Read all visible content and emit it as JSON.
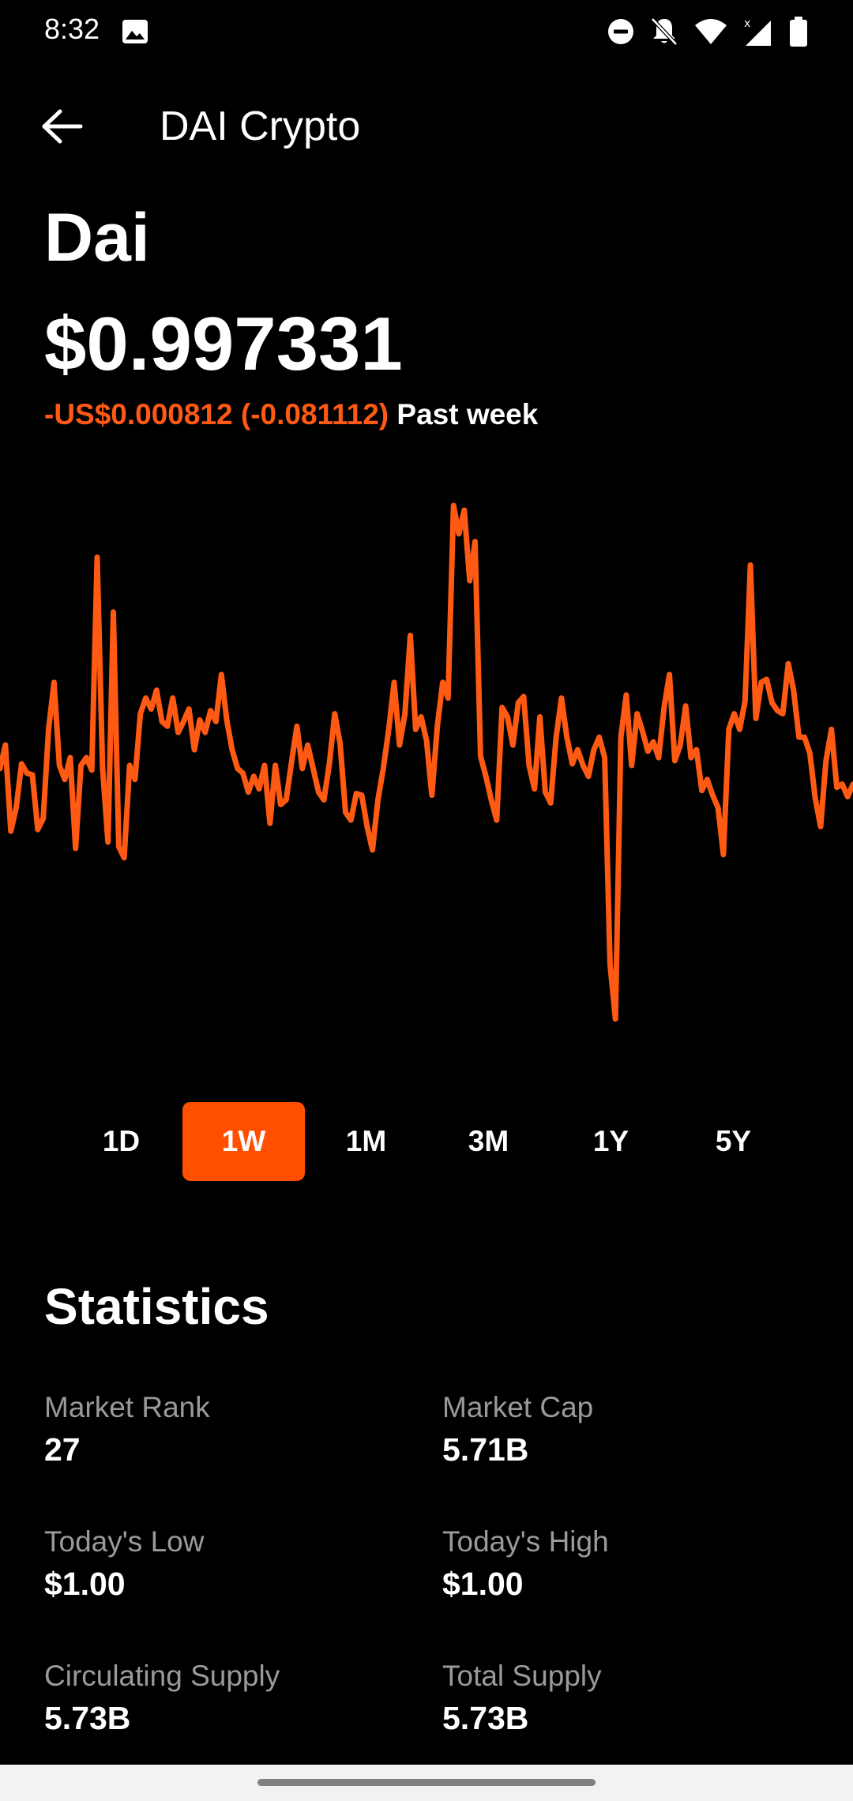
{
  "status_bar": {
    "time": "8:32",
    "icons": [
      "gallery-icon",
      "do-not-disturb-icon",
      "notifications-off-icon",
      "wifi-icon",
      "cellular-signal-icon",
      "battery-icon"
    ]
  },
  "app_bar": {
    "title": "DAI Crypto"
  },
  "coin": {
    "name": "Dai",
    "price": "$0.997331",
    "change": "-US$0.000812 (-0.081112)",
    "change_period": "Past week"
  },
  "colors": {
    "accent": "#ff4f00",
    "line": "#ff5a14",
    "negative": "#ff5a14",
    "background": "#000000",
    "muted_text": "#9a9a9a"
  },
  "chart_data": {
    "type": "line",
    "series": [
      {
        "values": [
          0.99745,
          0.9976,
          0.99705,
          0.9972,
          0.99748,
          0.99742,
          0.99741,
          0.99706,
          0.99713,
          0.9977,
          0.998,
          0.99747,
          0.99738,
          0.99752,
          0.99694,
          0.99747,
          0.99752,
          0.99744,
          0.9988,
          0.99745,
          0.99698,
          0.99845,
          0.99695,
          0.99688,
          0.99747,
          0.99738,
          0.9978,
          0.9979,
          0.99783,
          0.99795,
          0.99775,
          0.99772,
          0.9979,
          0.99768,
          0.99775,
          0.99783,
          0.99757,
          0.99776,
          0.99768,
          0.99782,
          0.99775,
          0.99805,
          0.99776,
          0.99757,
          0.99745,
          0.99742,
          0.9973,
          0.9974,
          0.99732,
          0.99747,
          0.9971,
          0.99747,
          0.99722,
          0.99725,
          0.99749,
          0.99772,
          0.99745,
          0.9976,
          0.99745,
          0.9973,
          0.99725,
          0.99748,
          0.9978,
          0.99761,
          0.99717,
          0.99712,
          0.99729,
          0.99728,
          0.99708,
          0.99693,
          0.99725,
          0.99745,
          0.9977,
          0.998,
          0.9976,
          0.9978,
          0.9983,
          0.9977,
          0.99778,
          0.99763,
          0.99728,
          0.99772,
          0.998,
          0.9979,
          0.99913,
          0.99895,
          0.9991,
          0.99865,
          0.9989,
          0.99753,
          0.9974,
          0.99725,
          0.99712,
          0.99784,
          0.99778,
          0.9976,
          0.99787,
          0.99791,
          0.99747,
          0.99732,
          0.99778,
          0.9973,
          0.99723,
          0.99765,
          0.9979,
          0.99765,
          0.99748,
          0.99757,
          0.99747,
          0.9974,
          0.99757,
          0.99765,
          0.99752,
          0.9962,
          0.99585,
          0.99765,
          0.99792,
          0.99747,
          0.9978,
          0.99769,
          0.99756,
          0.99762,
          0.99752,
          0.99784,
          0.99805,
          0.9975,
          0.9976,
          0.99785,
          0.99752,
          0.99757,
          0.99731,
          0.99738,
          0.99728,
          0.9972,
          0.9969,
          0.9977,
          0.9978,
          0.9977,
          0.99788,
          0.99875,
          0.99777,
          0.998,
          0.99802,
          0.99787,
          0.99782,
          0.9978,
          0.99812,
          0.99795,
          0.99765,
          0.99765,
          0.99755,
          0.99726,
          0.99708,
          0.9975,
          0.9977,
          0.99733,
          0.99735,
          0.99727,
          0.99735
        ]
      }
    ],
    "xlabel": "",
    "ylabel": "",
    "ylim": [
      0.99585,
      0.99913
    ],
    "grid": false,
    "legend": "none"
  },
  "range_tabs": [
    {
      "label": "1D",
      "active": false
    },
    {
      "label": "1W",
      "active": true
    },
    {
      "label": "1M",
      "active": false
    },
    {
      "label": "3M",
      "active": false
    },
    {
      "label": "1Y",
      "active": false
    },
    {
      "label": "5Y",
      "active": false
    }
  ],
  "statistics": {
    "title": "Statistics",
    "items": [
      {
        "label": "Market Rank",
        "value": "27"
      },
      {
        "label": "Market Cap",
        "value": "5.71B"
      },
      {
        "label": "Today's Low",
        "value": "$1.00"
      },
      {
        "label": "Today's High",
        "value": "$1.00"
      },
      {
        "label": "Circulating Supply",
        "value": "5.73B"
      },
      {
        "label": "Total Supply",
        "value": "5.73B"
      }
    ]
  }
}
